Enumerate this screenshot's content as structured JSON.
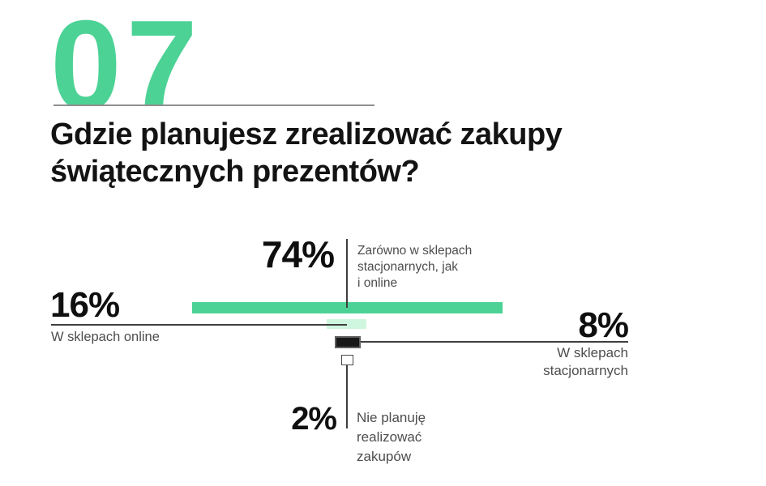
{
  "header": {
    "section_number": "07",
    "title": "Gdzie planujesz zrealizować zakupy\nświątecznych prezentów?"
  },
  "colors": {
    "accent_green": "#4CD295",
    "mint_green": "#CFF6DF",
    "bar_black": "#191919",
    "connector_gray": "#3f3f3f",
    "underline_gray": "#8f8f8f",
    "label_gray": "#4d4d4d",
    "number_black": "#0f0f0f"
  },
  "chart_data": {
    "type": "bar",
    "orientation": "horizontal",
    "title": "Gdzie planujesz zrealizować zakupy świątecznych prezentów?",
    "unit": "%",
    "grid": false,
    "legend": "none",
    "categories": [
      "Zarówno w sklepach stacjonarnych, jak i online",
      "W sklepach online",
      "W sklepach stacjonarnych",
      "Nie planuję realizować zakupów"
    ],
    "values": [
      74,
      16,
      8,
      2
    ],
    "bar_colors": [
      "#4CD295",
      "#CFF6DF",
      "#191919",
      "#ffffff"
    ]
  },
  "annotations": {
    "both_channels": {
      "value": "74%",
      "label": "Zarówno w sklepach\nstacjonarnych, jak\ni online"
    },
    "online": {
      "value": "16%",
      "label": "W sklepach online"
    },
    "stationary": {
      "value": "8%",
      "label": "W sklepach\nstacjonarnych"
    },
    "no_shopping": {
      "value": "2%",
      "label": "Nie planuję\nrealizować\nzakupów"
    }
  }
}
